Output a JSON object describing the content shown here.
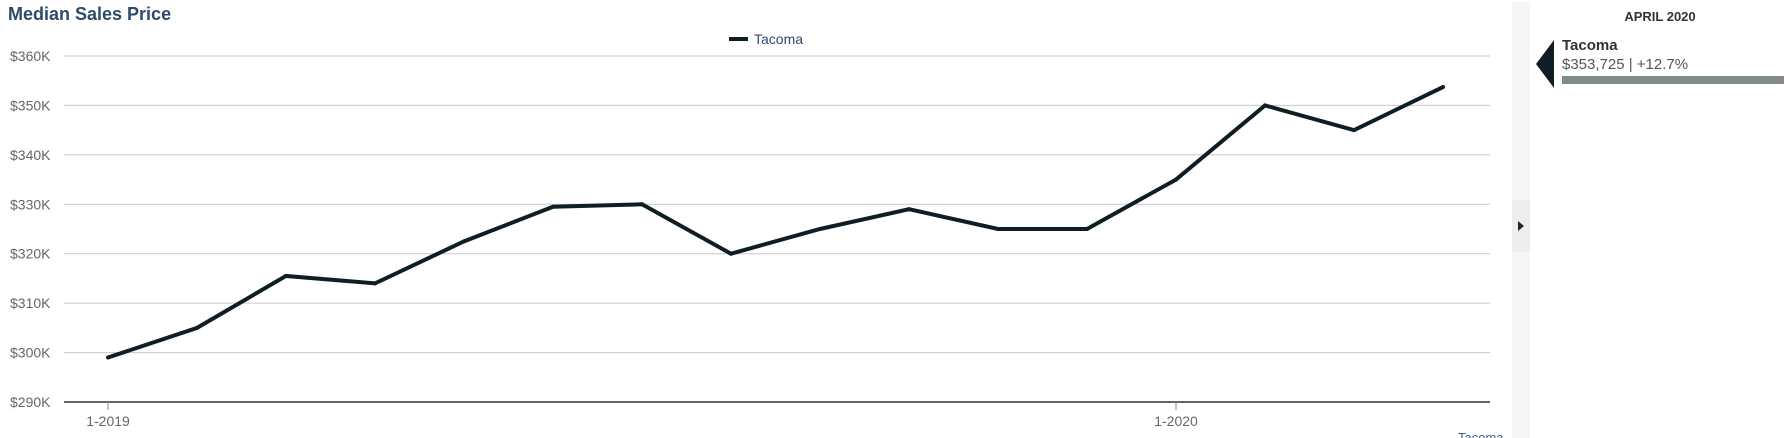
{
  "page": {
    "title": "Median Sales Price",
    "footer_label": "Tacoma"
  },
  "details_panel": {
    "period": "APRIL 2020",
    "series_name": "Tacoma",
    "series_value": "$353,725 | +12.7%",
    "bar_color": "#7e8b8a",
    "pointer_color": "#0f1e24",
    "toggle_icon": "triangle-right-icon"
  },
  "chart_data": {
    "type": "line",
    "title": "Median Sales Price",
    "xlabel": "",
    "ylabel": "",
    "legend": {
      "position": "top-center",
      "entries": [
        "Tacoma"
      ]
    },
    "grid": true,
    "x_ticks": [
      "1-2019",
      "1-2020"
    ],
    "x": [
      "2019-01",
      "2019-02",
      "2019-03",
      "2019-04",
      "2019-05",
      "2019-06",
      "2019-07",
      "2019-08",
      "2019-09",
      "2019-10",
      "2019-11",
      "2019-12",
      "2020-01",
      "2020-02",
      "2020-03",
      "2020-04"
    ],
    "y_ticks": [
      "$290K",
      "$300K",
      "$310K",
      "$320K",
      "$330K",
      "$340K",
      "$350K",
      "$360K"
    ],
    "ylim": [
      290000,
      360000
    ],
    "series": [
      {
        "name": "Tacoma",
        "color": "#0f1e24",
        "values": [
          299000,
          305000,
          315500,
          314000,
          322500,
          329500,
          330000,
          320000,
          325000,
          329000,
          325000,
          325000,
          335000,
          350000,
          345000,
          353725
        ]
      }
    ]
  }
}
